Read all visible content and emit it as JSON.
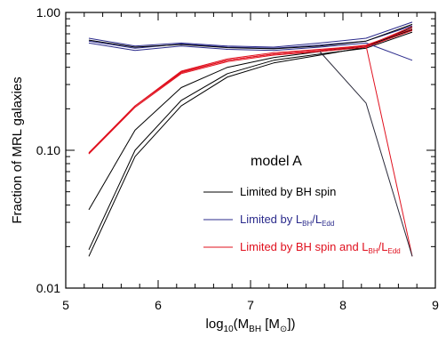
{
  "chart_data": {
    "type": "line",
    "xlabel": {
      "base": "log",
      "sub1": "10",
      "mid": "(M",
      "sub2": "BH",
      "mid2": " [M",
      "sub3": "⊙",
      "end": "])"
    },
    "ylabel": "Fraction of MRL galaxies",
    "xlim": [
      5,
      9
    ],
    "ylim": [
      0.01,
      1.0
    ],
    "yscale": "log",
    "xticks": [
      "5",
      "6",
      "7",
      "8",
      "9"
    ],
    "yticks": [
      "0.01",
      "0.10",
      "1.00"
    ],
    "annotation": "model A",
    "legend": [
      {
        "text": "Limited by BH spin",
        "color": "#000000"
      },
      {
        "prefix": "Limited by L",
        "sub1": "BH",
        "slash": "/L",
        "sub2": "Edd",
        "color": "#2b2b8c"
      },
      {
        "prefix": "Limited by BH spin and L",
        "sub1": "BH",
        "slash": "/L",
        "sub2": "Edd",
        "color": "#e0101e"
      }
    ],
    "series": [
      {
        "group": "bh_spin",
        "color": "#000000",
        "x": [
          5.25,
          5.75,
          6.25,
          6.75,
          7.25,
          7.75,
          8.25,
          8.75
        ],
        "y": [
          0.037,
          0.14,
          0.285,
          0.4,
          0.47,
          0.52,
          0.57,
          0.75
        ]
      },
      {
        "group": "bh_spin",
        "color": "#000000",
        "x": [
          5.25,
          5.75,
          6.25,
          6.75,
          7.25,
          7.75,
          8.25,
          8.75
        ],
        "y": [
          0.019,
          0.1,
          0.23,
          0.36,
          0.45,
          0.5,
          0.55,
          0.72
        ]
      },
      {
        "group": "bh_spin",
        "color": "#000000",
        "x": [
          5.25,
          5.75,
          6.25,
          6.75,
          7.25,
          7.75,
          8.25,
          8.75
        ],
        "y": [
          0.017,
          0.09,
          0.21,
          0.34,
          0.43,
          0.49,
          0.56,
          0.78
        ]
      },
      {
        "group": "ledd",
        "color": "#2b2b8c",
        "x": [
          5.25,
          5.75,
          6.25,
          6.75,
          7.25,
          7.75,
          8.25,
          8.75
        ],
        "y": [
          0.62,
          0.55,
          0.59,
          0.56,
          0.55,
          0.58,
          0.62,
          0.8
        ]
      },
      {
        "group": "ledd",
        "color": "#2b2b8c",
        "x": [
          5.25,
          5.75,
          6.25,
          6.75,
          7.25,
          7.75,
          8.25,
          8.75
        ],
        "y": [
          0.6,
          0.53,
          0.57,
          0.54,
          0.53,
          0.56,
          0.6,
          0.45
        ]
      },
      {
        "group": "ledd",
        "color": "#2b2b8c",
        "x": [
          5.25,
          5.75,
          6.25,
          6.75,
          7.25,
          7.75,
          8.25,
          8.75
        ],
        "y": [
          0.65,
          0.57,
          0.6,
          0.57,
          0.56,
          0.6,
          0.65,
          0.85
        ]
      },
      {
        "group": "ledd",
        "color": "#000000",
        "x": [
          5.25,
          5.75,
          6.25,
          6.75,
          7.25,
          7.75,
          8.25,
          8.75
        ],
        "y": [
          0.63,
          0.56,
          0.585,
          0.555,
          0.545,
          0.57,
          0.62,
          0.82
        ]
      },
      {
        "group": "spin_and_ledd",
        "color": "#e0101e",
        "x": [
          5.25,
          5.75,
          6.25,
          6.75,
          7.25,
          7.75,
          8.25,
          8.75
        ],
        "y": [
          0.095,
          0.21,
          0.37,
          0.45,
          0.5,
          0.53,
          0.58,
          0.76
        ]
      },
      {
        "group": "spin_and_ledd",
        "color": "#e0101e",
        "x": [
          5.25,
          5.75,
          6.25,
          6.75,
          7.25,
          7.75,
          8.25,
          8.75
        ],
        "y": [
          0.094,
          0.205,
          0.36,
          0.44,
          0.49,
          0.52,
          0.56,
          0.74
        ]
      },
      {
        "group": "spin_and_ledd",
        "color": "#e0101e",
        "x": [
          5.25,
          5.75,
          6.25,
          6.75,
          7.25,
          7.75,
          8.25,
          8.75
        ],
        "y": [
          0.096,
          0.21,
          0.375,
          0.46,
          0.51,
          0.54,
          0.575,
          0.017
        ]
      },
      {
        "group": "spin_and_ledd",
        "color": "#e0101e",
        "x": [
          5.25,
          5.75,
          6.25,
          6.75,
          7.25,
          7.75,
          8.25,
          8.75
        ],
        "y": [
          0.095,
          0.21,
          0.365,
          0.45,
          0.5,
          0.53,
          0.57,
          0.79
        ]
      },
      {
        "group": "bh_spin",
        "color": "#2a2a3a",
        "x": [
          7.75,
          8.25,
          8.75
        ],
        "y": [
          0.52,
          0.22,
          0.017
        ]
      }
    ]
  }
}
